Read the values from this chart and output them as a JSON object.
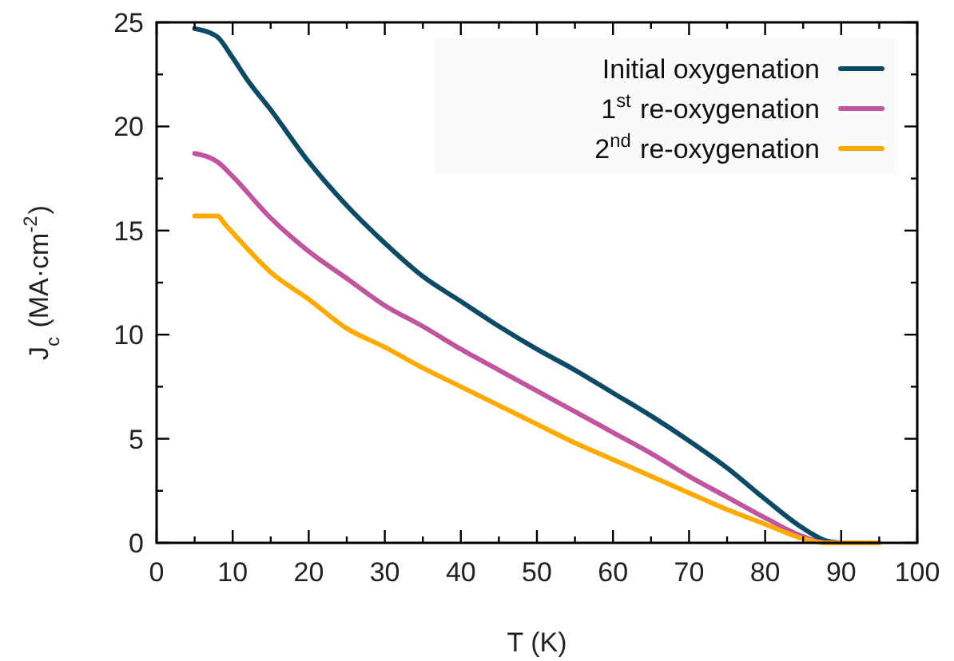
{
  "chart_data": {
    "type": "line",
    "xlabel": "T (K)",
    "ylabel": "J$_{c}$ (MA·cm$^{-2}$)",
    "xlim": [
      0,
      100
    ],
    "ylim": [
      0,
      25
    ],
    "xticks": [
      0,
      {
        "value": 5,
        "label": null
      },
      10,
      {
        "value": 15,
        "label": null
      },
      20,
      {
        "value": 25,
        "label": null
      },
      30,
      {
        "value": 35,
        "label": null
      },
      40,
      {
        "value": 45,
        "label": null
      },
      50,
      {
        "value": 55,
        "label": null
      },
      60,
      {
        "value": 65,
        "label": null
      },
      70,
      {
        "value": 75,
        "label": null
      },
      80,
      {
        "value": 85,
        "label": null
      },
      90,
      {
        "value": 95,
        "label": null
      },
      100
    ],
    "yticks": [
      0,
      {
        "value": 2.5,
        "label": null
      },
      5,
      {
        "value": 7.5,
        "label": null
      },
      10,
      {
        "value": 12.5,
        "label": null
      },
      15,
      {
        "value": 17.5,
        "label": null
      },
      20,
      {
        "value": 22.5,
        "label": null
      },
      25
    ],
    "grid": false,
    "legend": "top right",
    "marker": "none",
    "line_style": "solid",
    "series": [
      {
        "name": "Initial oxygenation",
        "color": "#0d4a66",
        "x": [
          5,
          7,
          8,
          10,
          12,
          15,
          20,
          25,
          30,
          35,
          40,
          45,
          50,
          55,
          60,
          65,
          70,
          75,
          80,
          85,
          88,
          90
        ],
        "values": [
          24.7,
          24.5,
          24.3,
          23.3,
          22.2,
          20.8,
          18.3,
          16.2,
          14.4,
          12.8,
          11.6,
          10.4,
          9.3,
          8.3,
          7.2,
          6.1,
          4.9,
          3.6,
          2.1,
          0.7,
          0.1,
          0
        ]
      },
      {
        "name": "1$^{st}$ re-oxygenation",
        "color": "#c0549e",
        "x": [
          5,
          7,
          8,
          10,
          15,
          20,
          25,
          30,
          35,
          40,
          45,
          50,
          55,
          60,
          65,
          70,
          75,
          80,
          85,
          88,
          90
        ],
        "values": [
          18.7,
          18.5,
          18.3,
          17.6,
          15.6,
          14.0,
          12.7,
          11.4,
          10.4,
          9.3,
          8.3,
          7.3,
          6.3,
          5.3,
          4.3,
          3.2,
          2.2,
          1.2,
          0.3,
          0,
          0
        ]
      },
      {
        "name": "2$^{nd}$ re-oxygenation",
        "color": "#ffaa00",
        "x": [
          5,
          8,
          9,
          10,
          15,
          20,
          25,
          30,
          35,
          40,
          45,
          50,
          55,
          60,
          65,
          70,
          75,
          80,
          85,
          88,
          95
        ],
        "values": [
          15.7,
          15.7,
          15.3,
          14.9,
          13.0,
          11.7,
          10.3,
          9.4,
          8.4,
          7.5,
          6.6,
          5.7,
          4.8,
          4.0,
          3.2,
          2.4,
          1.6,
          0.9,
          0.2,
          0,
          0
        ]
      }
    ]
  }
}
